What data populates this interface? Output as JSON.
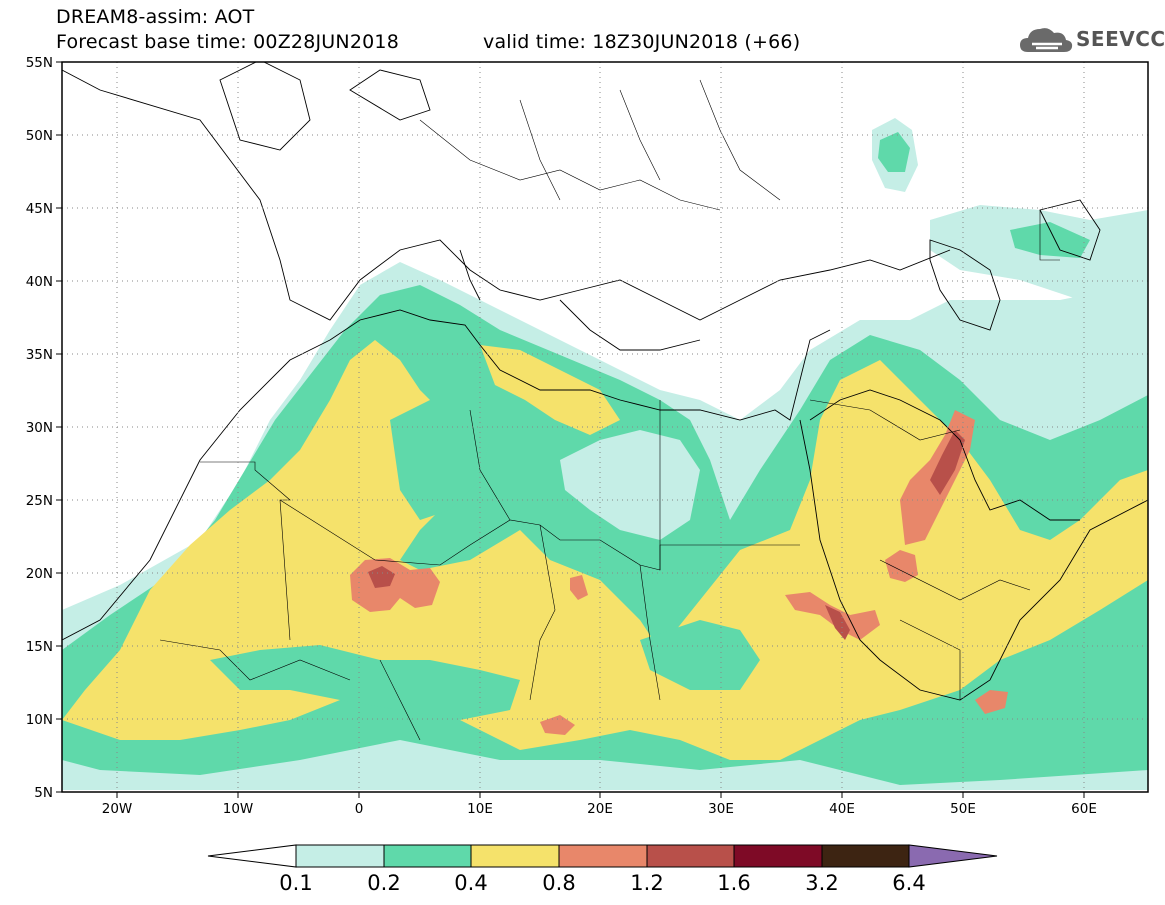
{
  "header": {
    "line1": "DREAM8-assim: AOT",
    "line2": "Forecast base time: 00Z28JUN2018",
    "line3": "valid time: 18Z30JUN2018 (+66)"
  },
  "logo": {
    "text": "SEEVCCC",
    "icon": "cloud-logo-icon"
  },
  "map": {
    "lon_range": [
      -25,
      65
    ],
    "lat_range": [
      5,
      55
    ],
    "lat_labels": [
      "55N",
      "50N",
      "45N",
      "40N",
      "35N",
      "30N",
      "25N",
      "20N",
      "15N",
      "10N",
      "5N"
    ],
    "lon_labels": [
      "20W",
      "10W",
      "0",
      "10E",
      "20E",
      "30E",
      "40E",
      "50E",
      "60E"
    ],
    "grid": "dotted"
  },
  "colorbar": {
    "labels": [
      "0.1",
      "0.2",
      "0.4",
      "0.8",
      "1.2",
      "1.6",
      "3.2",
      "6.4"
    ],
    "colors": [
      "#ffffff",
      "#c5eee6",
      "#5fd9aa",
      "#f5e26b",
      "#e8876a",
      "#b8504a",
      "#7e0a26",
      "#3d2412",
      "#8a6ab0"
    ]
  }
}
